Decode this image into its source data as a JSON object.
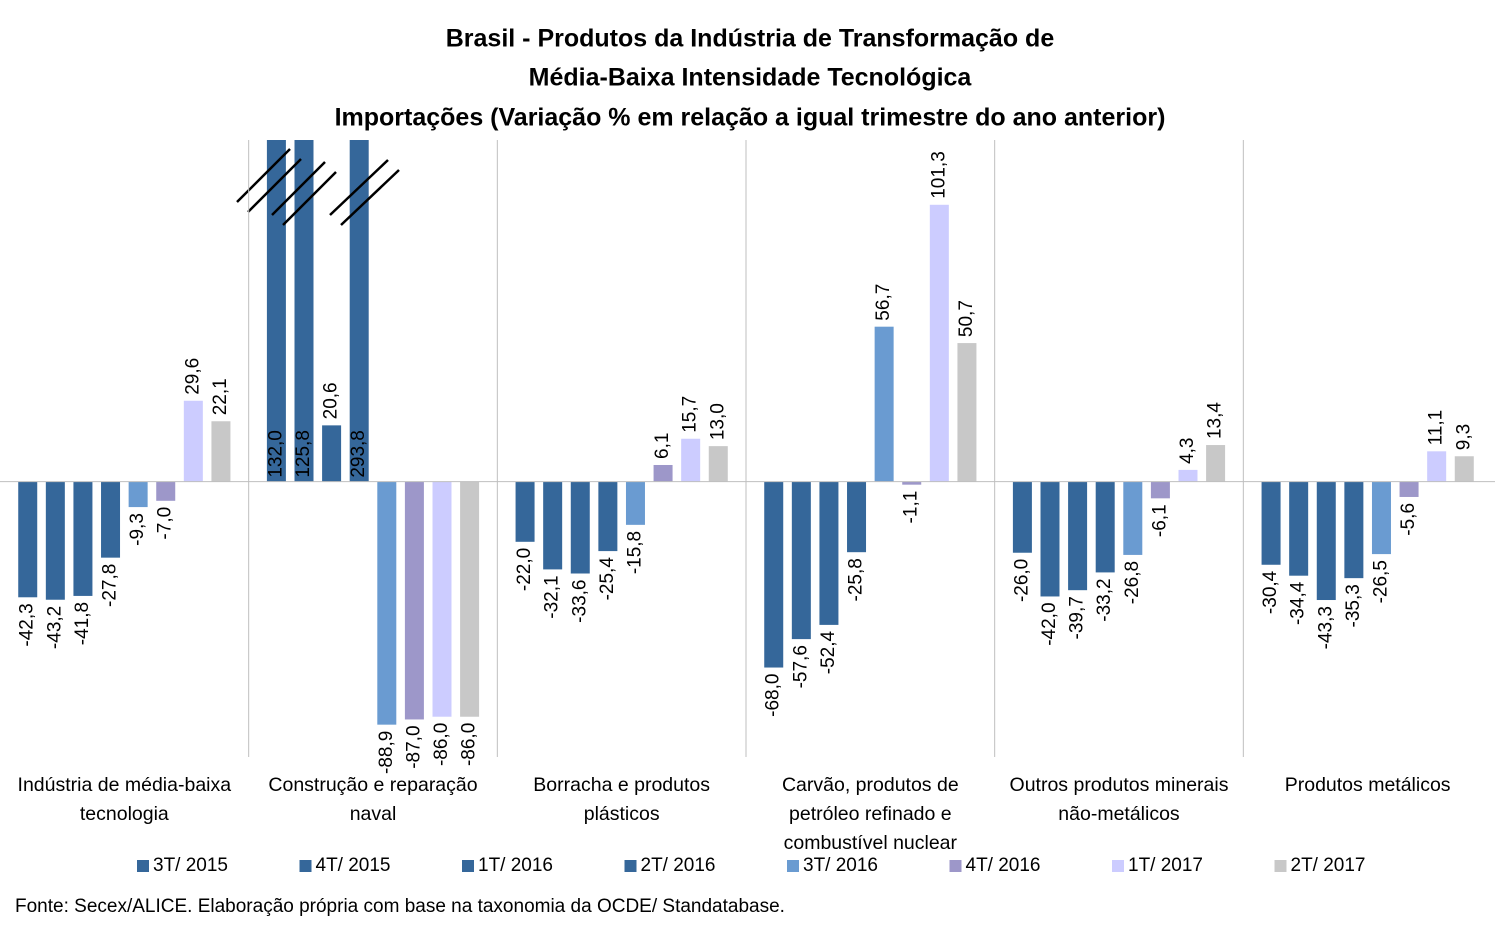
{
  "chart_data": {
    "type": "bar",
    "title": [
      "Brasil - Produtos da Indústria de Transformação de",
      "Média-Baixa Intensidade Tecnológica",
      "Importações (Variação % em relação a igual trimestre do ano anterior)"
    ],
    "categories": [
      "Indústria de média-baixa tecnologia",
      "Construção e reparação naval",
      "Borracha e produtos plásticos",
      "Carvão, produtos de petróleo refinado e combustível nuclear",
      "Outros produtos minerais não-metálicos",
      "Produtos metálicos"
    ],
    "series": [
      {
        "name": "3T/ 2015",
        "color": "#35679a",
        "values": [
          -42.3,
          132.0,
          -22.0,
          -68.0,
          -26.0,
          -30.4
        ],
        "value_labels": [
          "-42,3",
          "132,0",
          "-22,0",
          "-68,0",
          "-26,0",
          "-30,4"
        ]
      },
      {
        "name": "4T/ 2015",
        "color": "#35679a",
        "values": [
          -43.2,
          125.8,
          -32.1,
          -57.6,
          -42.0,
          -34.4
        ],
        "value_labels": [
          "-43,2",
          "125,8",
          "-32,1",
          "-57,6",
          "-42,0",
          "-34,4"
        ]
      },
      {
        "name": "1T/ 2016",
        "color": "#35679a",
        "values": [
          -41.8,
          20.6,
          -33.6,
          -52.4,
          -39.7,
          -43.3
        ],
        "value_labels": [
          "-41,8",
          "20,6",
          "-33,6",
          "-52,4",
          "-39,7",
          "-43,3"
        ]
      },
      {
        "name": "2T/ 2016",
        "color": "#35679a",
        "values": [
          -27.8,
          293.8,
          -25.4,
          -25.8,
          -33.2,
          -35.3
        ],
        "value_labels": [
          "-27,8",
          "293,8",
          "-25,4",
          "-25,8",
          "-33,2",
          "-35,3"
        ]
      },
      {
        "name": "3T/ 2016",
        "color": "#6a9bd1",
        "values": [
          -9.3,
          -88.9,
          -15.8,
          56.7,
          -26.8,
          -26.5
        ],
        "value_labels": [
          "-9,3",
          "-88,9",
          "-15,8",
          "56,7",
          "-26,8",
          "-26,5"
        ]
      },
      {
        "name": "4T/ 2016",
        "color": "#9d97c9",
        "values": [
          -7.0,
          -87.0,
          6.1,
          -1.1,
          -6.1,
          -5.6
        ],
        "value_labels": [
          "-7,0",
          "-87,0",
          "6,1",
          "-1,1",
          "-6,1",
          "-5,6"
        ]
      },
      {
        "name": "1T/ 2017",
        "color": "#ccccff",
        "values": [
          29.6,
          -86.0,
          15.7,
          101.3,
          4.3,
          11.1
        ],
        "value_labels": [
          "29,6",
          "-86,0",
          "15,7",
          "101,3",
          "4,3",
          "11,1"
        ]
      },
      {
        "name": "2T/ 2017",
        "color": "#c8c8c8",
        "values": [
          22.1,
          -86.0,
          13.0,
          50.7,
          13.4,
          9.3
        ],
        "value_labels": [
          "22,1",
          "-86,0",
          "13,0",
          "50,7",
          "13,4",
          "9,3"
        ]
      }
    ],
    "ylim": [
      -100,
      125
    ],
    "source": "Fonte: Secex/ALICE. Elaboração própria com base na taxonomia da OCDE/ Standatabase."
  }
}
